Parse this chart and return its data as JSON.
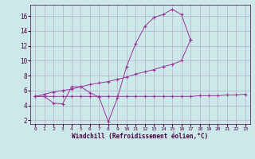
{
  "background_color": "#cce8e8",
  "grid_color": "#b0b0cc",
  "line_color": "#993399",
  "xlabel": "Windchill (Refroidissement éolien,°C)",
  "xlim": [
    -0.5,
    23.5
  ],
  "ylim": [
    1.5,
    17.5
  ],
  "yticks": [
    2,
    4,
    6,
    8,
    10,
    12,
    14,
    16
  ],
  "xticks": [
    0,
    1,
    2,
    3,
    4,
    5,
    6,
    7,
    8,
    9,
    10,
    11,
    12,
    13,
    14,
    15,
    16,
    17,
    18,
    19,
    20,
    21,
    22,
    23
  ],
  "series": [
    {
      "x": [
        0,
        1,
        2,
        3,
        4,
        5,
        6,
        7,
        8,
        9,
        10,
        11,
        12,
        13,
        14,
        15,
        16,
        17
      ],
      "y": [
        5.2,
        5.2,
        4.3,
        4.2,
        6.5,
        6.5,
        5.7,
        5.1,
        1.8,
        5.0,
        9.2,
        12.3,
        14.6,
        15.8,
        16.2,
        16.9,
        16.2,
        12.8
      ]
    },
    {
      "x": [
        0,
        1,
        2,
        3,
        4,
        5,
        6,
        7,
        8,
        9,
        10,
        11,
        12,
        13,
        14,
        15,
        16,
        17
      ],
      "y": [
        5.2,
        5.5,
        5.8,
        6.0,
        6.2,
        6.5,
        6.8,
        7.0,
        7.2,
        7.5,
        7.8,
        8.2,
        8.5,
        8.8,
        9.2,
        9.5,
        10.0,
        12.8
      ]
    },
    {
      "x": [
        0,
        1,
        2,
        3,
        4,
        5,
        6,
        7,
        8,
        9,
        10,
        11,
        12,
        13,
        14,
        15,
        16,
        17,
        18,
        19,
        20,
        21,
        22,
        23
      ],
      "y": [
        5.2,
        5.2,
        5.2,
        5.2,
        5.2,
        5.2,
        5.2,
        5.2,
        5.2,
        5.2,
        5.2,
        5.2,
        5.2,
        5.2,
        5.2,
        5.2,
        5.2,
        5.2,
        5.3,
        5.3,
        5.3,
        5.4,
        5.4,
        5.5
      ]
    }
  ]
}
